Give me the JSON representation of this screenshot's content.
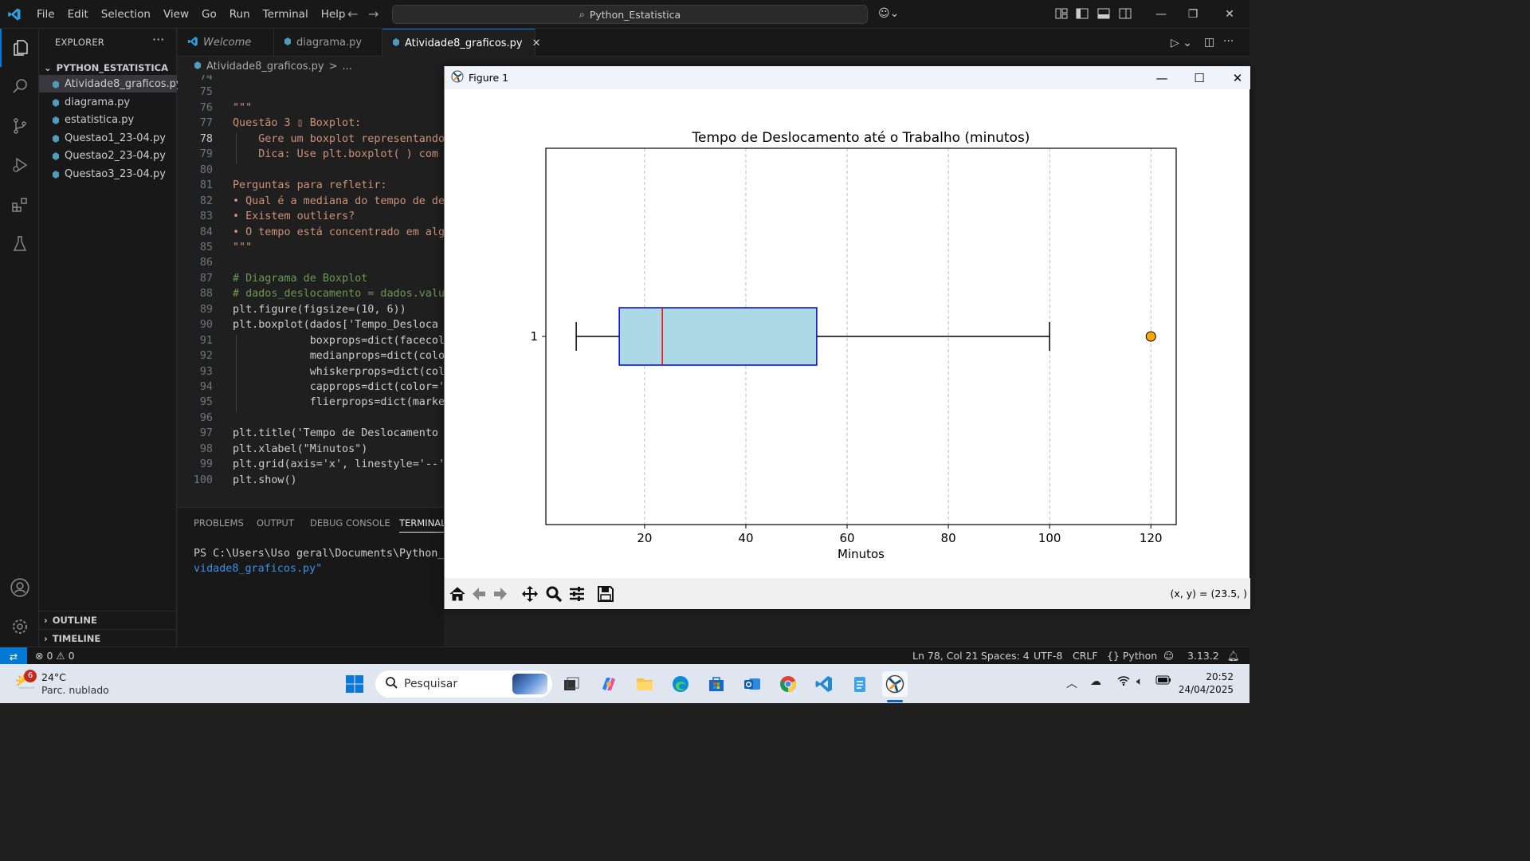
{
  "menu": [
    "File",
    "Edit",
    "Selection",
    "View",
    "Go",
    "Run",
    "Terminal",
    "Help"
  ],
  "command_center": "Python_Estatistica",
  "sidebar": {
    "title": "EXPLORER",
    "folder": "PYTHON_ESTATISTICA",
    "files": [
      "Atividade8_graficos.py",
      "diagrama.py",
      "estatistica.py",
      "Questao1_23-04.py",
      "Questao2_23-04.py",
      "Questao3_23-04.py"
    ],
    "outline": "OUTLINE",
    "timeline": "TIMELINE"
  },
  "tabs": [
    {
      "label": "Welcome"
    },
    {
      "label": "diagrama.py"
    },
    {
      "label": "Atividade8_graficos.py"
    }
  ],
  "breadcrumb": {
    "file": "Atividade8_graficos.py",
    "sep": ">",
    "more": "..."
  },
  "editor": {
    "lines": [
      {
        "n": "74",
        "t": ""
      },
      {
        "n": "75",
        "t": ""
      },
      {
        "n": "76",
        "t": "\"\"\""
      },
      {
        "n": "77",
        "t": "Questão 3 ▯ Boxplot:"
      },
      {
        "n": "78",
        "t": "    Gere um boxplot representando"
      },
      {
        "n": "79",
        "t": "    Dica: Use plt.boxplot( ) com c"
      },
      {
        "n": "80",
        "t": ""
      },
      {
        "n": "81",
        "t": "Perguntas para refletir:"
      },
      {
        "n": "82",
        "t": "• Qual é a mediana do tempo de des"
      },
      {
        "n": "83",
        "t": "• Existem outliers?"
      },
      {
        "n": "84",
        "t": "• O tempo está concentrado em algu"
      },
      {
        "n": "85",
        "t": "\"\"\""
      },
      {
        "n": "86",
        "t": ""
      },
      {
        "n": "87",
        "t": "# Diagrama de Boxplot"
      },
      {
        "n": "88",
        "t": "# dados_deslocamento = dados.value"
      },
      {
        "n": "89",
        "t": "plt.figure(figsize=(10, 6))"
      },
      {
        "n": "90",
        "t": "plt.boxplot(dados['Tempo_Desloca"
      },
      {
        "n": "91",
        "t": "            boxprops=dict(facecolo"
      },
      {
        "n": "92",
        "t": "            medianprops=dict(colo"
      },
      {
        "n": "93",
        "t": "            whiskerprops=dict(colo"
      },
      {
        "n": "94",
        "t": "            capprops=dict(color='b"
      },
      {
        "n": "95",
        "t": "            flierprops=dict(marker"
      },
      {
        "n": "96",
        "t": ""
      },
      {
        "n": "97",
        "t": "plt.title('Tempo de Deslocamento a"
      },
      {
        "n": "98",
        "t": "plt.xlabel(\"Minutos\")"
      },
      {
        "n": "99",
        "t": "plt.grid(axis='x', linestyle='--',"
      },
      {
        "n": "100",
        "t": "plt.show()"
      }
    ]
  },
  "panel": {
    "tabs": [
      "PROBLEMS",
      "OUTPUT",
      "DEBUG CONSOLE",
      "TERMINAL"
    ],
    "terminal_line1": "PS C:\\Users\\Uso geral\\Documents\\Python_Esta",
    "terminal_line2": "vidade8_graficos.py\""
  },
  "status": {
    "errors": "0",
    "warnings": "0",
    "position": "Ln 78, Col 21",
    "spaces": "Spaces: 4",
    "encoding": "UTF-8",
    "eol": "CRLF",
    "language": "Python",
    "version": "3.13.2"
  },
  "figure": {
    "window_title": "Figure 1",
    "coords": "(x, y) = (23.5, )"
  },
  "chart_data": {
    "type": "boxplot",
    "title": "Tempo de Deslocamento até o Trabalho (minutos)",
    "xlabel": "Minutos",
    "ylabel": "",
    "orientation": "horizontal",
    "xlim": [
      0.5,
      125
    ],
    "xticks": [
      20,
      40,
      60,
      80,
      100,
      120
    ],
    "yticks": [
      "1"
    ],
    "grid": "x, dashed",
    "boxes": [
      {
        "label": "1",
        "whisker_low": 6.5,
        "q1": 15,
        "median": 23.5,
        "q3": 54,
        "whisker_high": 100,
        "outliers": [
          120
        ]
      }
    ],
    "colors": {
      "box_face": "#add8e6",
      "box_edge": "#0000cd",
      "median": "#ff0000",
      "whisker": "#000000",
      "flier": "#ffa500"
    }
  },
  "taskbar": {
    "weather_temp": "24°C",
    "weather_desc": "Parc. nublado",
    "weather_badge": "6",
    "search_placeholder": "Pesquisar",
    "time": "20:52",
    "date": "24/04/2025"
  }
}
